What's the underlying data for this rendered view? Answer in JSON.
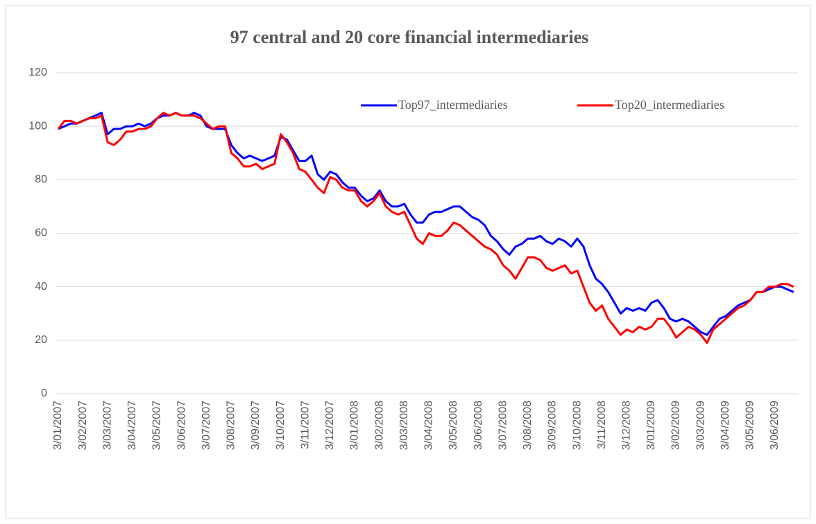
{
  "chart_data": {
    "type": "line",
    "title": "97 central and 20 core financial intermediaries",
    "categories": [
      "3/01/2007",
      null,
      null,
      null,
      "3/02/2007",
      null,
      null,
      null,
      "3/03/2007",
      null,
      null,
      null,
      "3/04/2007",
      null,
      null,
      null,
      "3/05/2007",
      null,
      null,
      null,
      "3/06/2007",
      null,
      null,
      null,
      "3/07/2007",
      null,
      null,
      null,
      "3/08/2007",
      null,
      null,
      null,
      "3/09/2007",
      null,
      null,
      null,
      "3/10/2007",
      null,
      null,
      null,
      "3/11/2007",
      null,
      null,
      null,
      "3/12/2007",
      null,
      null,
      null,
      "3/01/2008",
      null,
      null,
      null,
      "3/02/2008",
      null,
      null,
      null,
      "3/03/2008",
      null,
      null,
      null,
      "3/04/2008",
      null,
      null,
      null,
      "3/05/2008",
      null,
      null,
      null,
      "3/06/2008",
      null,
      null,
      null,
      "3/07/2008",
      null,
      null,
      null,
      "3/08/2008",
      null,
      null,
      null,
      "3/09/2008",
      null,
      null,
      null,
      "3/10/2008",
      null,
      null,
      null,
      "3/11/2008",
      null,
      null,
      null,
      "3/12/2008",
      null,
      null,
      null,
      "3/01/2009",
      null,
      null,
      null,
      "3/02/2009",
      null,
      null,
      null,
      "3/03/2009",
      null,
      null,
      null,
      "3/04/2009",
      null,
      null,
      null,
      "3/05/2009",
      null,
      null,
      null,
      "3/06/2009",
      null,
      null,
      null
    ],
    "series": [
      {
        "name": "Top97_intermediaries",
        "color": "#0000ff",
        "values": [
          99,
          100,
          101,
          101,
          102,
          103,
          104,
          105,
          97,
          99,
          99,
          100,
          100,
          101,
          100,
          101,
          103,
          104,
          104,
          105,
          104,
          104,
          105,
          104,
          100,
          99,
          99,
          99,
          93,
          90,
          88,
          89,
          88,
          87,
          88,
          89,
          96,
          95,
          91,
          87,
          87,
          89,
          82,
          80,
          83,
          82,
          79,
          77,
          77,
          74,
          72,
          73,
          76,
          72,
          70,
          70,
          71,
          67,
          64,
          64,
          67,
          68,
          68,
          69,
          70,
          70,
          68,
          66,
          65,
          63,
          59,
          57,
          54,
          52,
          55,
          56,
          58,
          58,
          59,
          57,
          56,
          58,
          57,
          55,
          58,
          55,
          48,
          43,
          41,
          38,
          34,
          30,
          32,
          31,
          32,
          31,
          34,
          35,
          32,
          28,
          27,
          28,
          27,
          25,
          23,
          22,
          25,
          28,
          29,
          31,
          33,
          34,
          35,
          38,
          38,
          39,
          40,
          40,
          39,
          38
        ]
      },
      {
        "name": "Top20_intermediaries",
        "color": "#ff0000",
        "values": [
          99,
          102,
          102,
          101,
          102,
          103,
          103,
          104,
          94,
          93,
          95,
          98,
          98,
          99,
          99,
          100,
          103,
          105,
          104,
          105,
          104,
          104,
          104,
          103,
          101,
          99,
          100,
          100,
          90,
          88,
          85,
          85,
          86,
          84,
          85,
          86,
          97,
          94,
          90,
          84,
          83,
          80,
          77,
          75,
          81,
          80,
          77,
          76,
          76,
          72,
          70,
          72,
          75,
          70,
          68,
          67,
          68,
          63,
          58,
          56,
          60,
          59,
          59,
          61,
          64,
          63,
          61,
          59,
          57,
          55,
          54,
          52,
          48,
          46,
          43,
          47,
          51,
          51,
          50,
          47,
          46,
          47,
          48,
          45,
          46,
          40,
          34,
          31,
          33,
          28,
          25,
          22,
          24,
          23,
          25,
          24,
          25,
          28,
          28,
          25,
          21,
          23,
          25,
          24,
          22,
          19,
          24,
          26,
          28,
          30,
          32,
          33,
          35,
          38,
          38,
          40,
          40,
          41,
          41,
          40
        ]
      }
    ],
    "ylim": [
      0,
      120
    ],
    "yticks": [
      0,
      20,
      40,
      60,
      80,
      100,
      120
    ],
    "grid": true,
    "legend": "top-right"
  }
}
